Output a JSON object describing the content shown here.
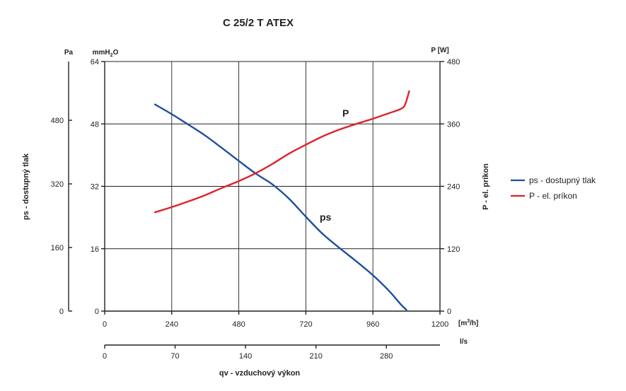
{
  "chart_data": {
    "type": "line",
    "title": "C 25/2 T ATEX",
    "xlabel": "qv - vzduchový výkon",
    "x_axis": {
      "unit": "[m³/h]",
      "unit_base": "[m",
      "unit_sup": "3",
      "unit_tail": "/h]",
      "range": [
        0,
        1200
      ],
      "ticks": [
        0,
        240,
        480,
        720,
        960,
        1200
      ]
    },
    "x2_axis": {
      "unit": "l/s",
      "range": [
        0,
        333.3
      ],
      "ticks": [
        0,
        70,
        140,
        210,
        280
      ]
    },
    "y_left_pa": {
      "label": "ps - dostupný tlak",
      "unit": "Pa",
      "range": [
        0,
        627.8
      ],
      "ticks": [
        0,
        160,
        320,
        480
      ]
    },
    "y_left_mmh2o": {
      "unit": "mmH2O",
      "unit_base": "mmH",
      "unit_sub": "2",
      "unit_tail": "O",
      "range": [
        0,
        64
      ],
      "ticks": [
        0,
        16,
        32,
        48,
        64
      ]
    },
    "y_right": {
      "label": "P - el. príkon",
      "unit": "P [W]",
      "range": [
        0,
        480
      ],
      "ticks": [
        0,
        120,
        240,
        360,
        480
      ]
    },
    "grid": true,
    "legend_position": "right",
    "series": [
      {
        "name": "ps - dostupný tlak",
        "curve_label": "ps",
        "axis": "y_left_mmh2o",
        "color": "#1f4e9e",
        "x": [
          180,
          240,
          300,
          360,
          420,
          480,
          540,
          600,
          660,
          720,
          780,
          840,
          900,
          960,
          1020,
          1060,
          1080
        ],
        "y": [
          53,
          50.5,
          47.8,
          45,
          41.8,
          38.5,
          35.3,
          32.5,
          28.8,
          24.2,
          19.8,
          16.2,
          12.8,
          9.2,
          5,
          1.7,
          0.3
        ]
      },
      {
        "name": "P - el. príkon",
        "curve_label": "P",
        "axis": "y_right",
        "color": "#e0222b",
        "x": [
          180,
          240,
          300,
          360,
          420,
          480,
          540,
          600,
          660,
          720,
          780,
          840,
          900,
          960,
          1020,
          1060,
          1075,
          1090
        ],
        "y": [
          190,
          200,
          211,
          223,
          237,
          250,
          265,
          283,
          303,
          320,
          336,
          349,
          360,
          370,
          381,
          389,
          397,
          423
        ]
      }
    ]
  }
}
